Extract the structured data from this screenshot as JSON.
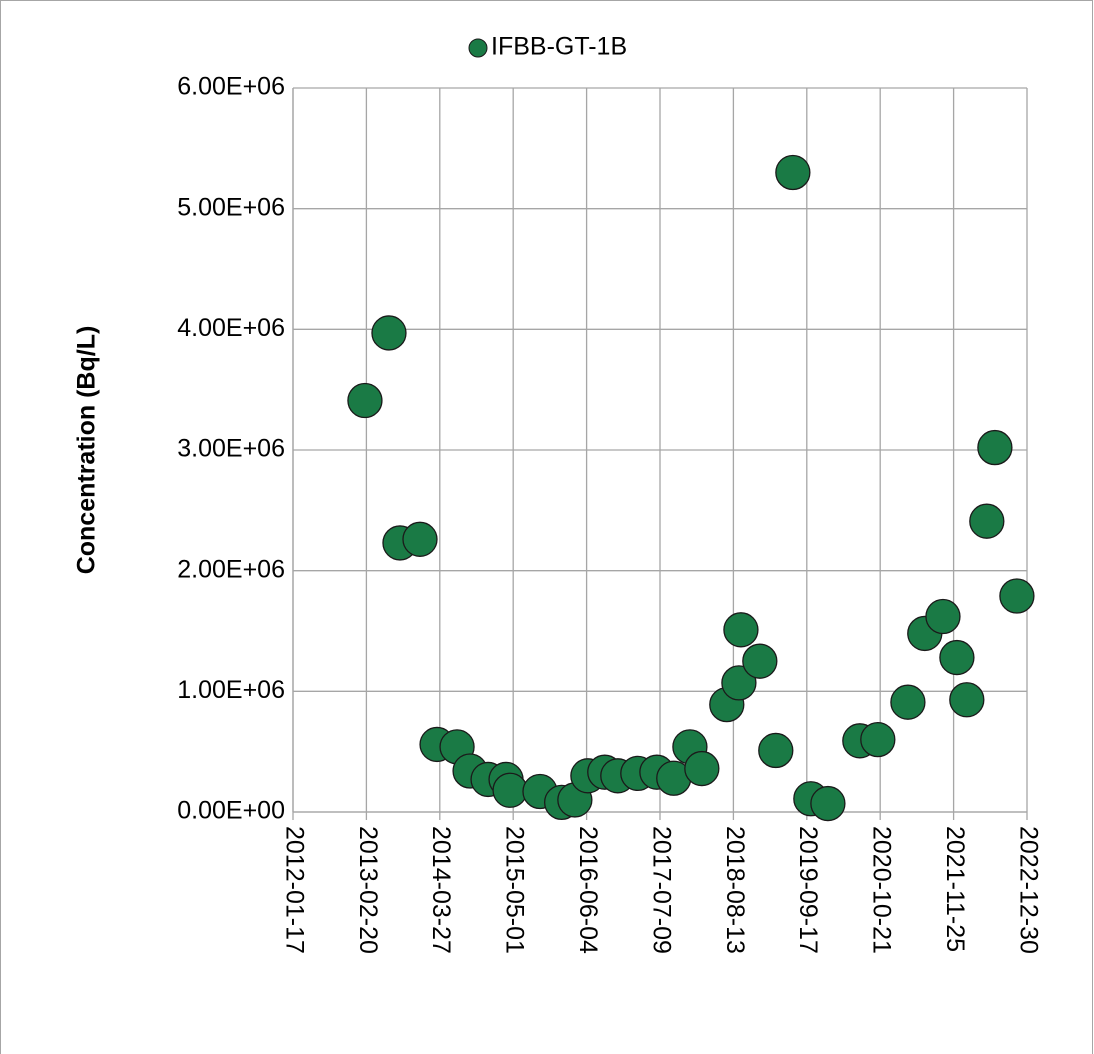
{
  "chart_data": {
    "type": "scatter",
    "y_label": "Concentration (Bq/L)",
    "series": [
      {
        "name": "IFBB-GT-1B",
        "color": "#1a7a45",
        "x": [
          "2013-02-12",
          "2013-06-23",
          "2013-08-22",
          "2013-12-09",
          "2014-03-12",
          "2014-06-29",
          "2014-09-08",
          "2014-12-15",
          "2015-03-23",
          "2015-04-14",
          "2015-09-24",
          "2016-01-20",
          "2016-04-01",
          "2016-06-11",
          "2016-09-11",
          "2016-11-21",
          "2017-03-10",
          "2017-06-22",
          "2017-09-22",
          "2017-12-19",
          "2018-02-22",
          "2018-07-08",
          "2018-09-12",
          "2018-09-23",
          "2019-01-04",
          "2019-04-01",
          "2019-07-03",
          "2019-10-09",
          "2020-01-10",
          "2020-07-02",
          "2020-10-08",
          "2021-03-21",
          "2021-06-21",
          "2021-09-28",
          "2021-12-13",
          "2022-02-05",
          "2022-05-25",
          "2022-07-08",
          "2022-11-05"
        ],
        "values": [
          3410000,
          3970000,
          2230000,
          2260000,
          560000,
          540000,
          340000,
          270000,
          270000,
          180000,
          170000,
          80000,
          100000,
          300000,
          330000,
          300000,
          320000,
          330000,
          280000,
          540000,
          360000,
          890000,
          1070000,
          1510000,
          1250000,
          510000,
          5300000,
          110000,
          70000,
          590000,
          600000,
          910000,
          1480000,
          1620000,
          1280000,
          930000,
          2410000,
          3020000,
          1790000
        ]
      }
    ],
    "xlim": [
      "2012-01-17",
      "2022-12-30"
    ],
    "xticks": [
      "2012-01-17",
      "2013-02-20",
      "2014-03-27",
      "2015-05-01",
      "2016-06-04",
      "2017-07-09",
      "2018-08-13",
      "2019-09-17",
      "2020-10-21",
      "2021-11-25",
      "2022-12-30"
    ],
    "ylim": [
      0,
      6000000
    ],
    "yticks": [
      {
        "value": 0,
        "label": "0.00E+00"
      },
      {
        "value": 1000000,
        "label": "1.00E+06"
      },
      {
        "value": 2000000,
        "label": "2.00E+06"
      },
      {
        "value": 3000000,
        "label": "3.00E+06"
      },
      {
        "value": 4000000,
        "label": "4.00E+06"
      },
      {
        "value": 5000000,
        "label": "5.00E+06"
      },
      {
        "value": 6000000,
        "label": "6.00E+06"
      }
    ],
    "grid": true,
    "legend": "top"
  }
}
